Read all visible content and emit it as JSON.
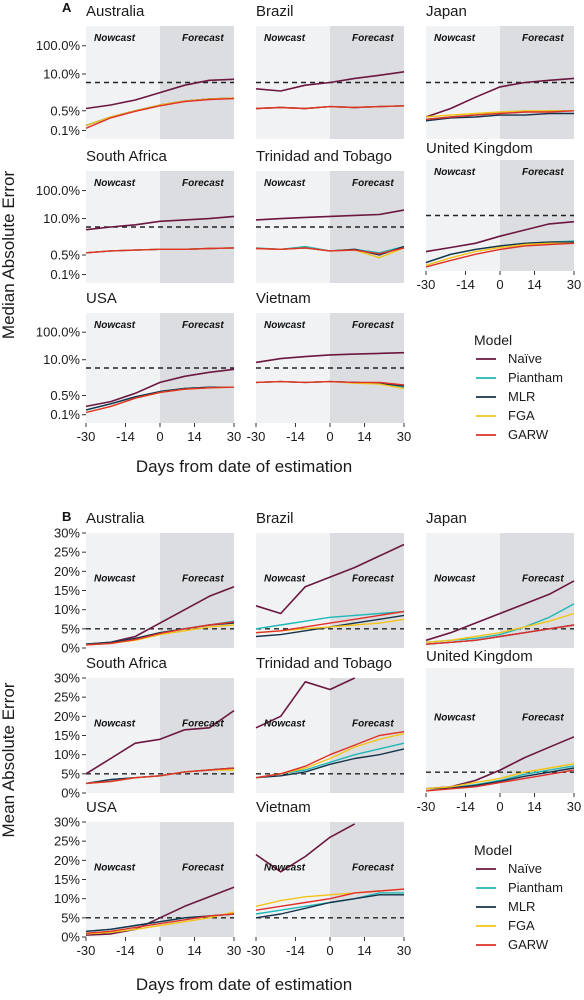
{
  "figure": {
    "x_label": "Days from date of estimation",
    "nowcast_label": "Nowcast",
    "forecast_label": "Forecast",
    "legend_title": "Model",
    "legend_items": [
      {
        "name": "Naïve",
        "color": "#6b1740"
      },
      {
        "name": "Piantham",
        "color": "#1fb8b8"
      },
      {
        "name": "MLR",
        "color": "#17324a"
      },
      {
        "name": "FGA",
        "color": "#f2c418"
      },
      {
        "name": "GARW",
        "color": "#e0302a"
      }
    ],
    "threshold_line": "dashed horizontal reference at 5%",
    "nowcast_shade": "#f1f2f4",
    "forecast_shade": "#dcdde0"
  },
  "chart_data": [
    {
      "section": "A",
      "type": "line",
      "ylabel": "Median Absolute Error",
      "y_scale": "log",
      "y_ticks": [
        "100.0%",
        "10.0%",
        "0.5%",
        "0.1%"
      ],
      "x_ticks": [
        -30,
        -14,
        0,
        14,
        30
      ],
      "xlim": [
        -30,
        30
      ],
      "reference_line": 5,
      "note": "values are approximate median absolute error (%) read at x = -30,-20,-10,0,10,20,30",
      "x": [
        -30,
        -20,
        -10,
        0,
        10,
        20,
        30
      ],
      "panels": [
        {
          "name": "Australia",
          "series": {
            "Naïve": [
              0.6,
              0.8,
              1.2,
              2.2,
              4.0,
              6.0,
              6.5
            ],
            "Piantham": [
              0.15,
              0.3,
              0.5,
              0.8,
              1.1,
              1.3,
              1.4
            ],
            "MLR": [
              0.15,
              0.3,
              0.5,
              0.8,
              1.1,
              1.3,
              1.4
            ],
            "FGA": [
              0.15,
              0.3,
              0.5,
              0.8,
              1.1,
              1.3,
              1.4
            ],
            "GARW": [
              0.12,
              0.28,
              0.48,
              0.75,
              1.05,
              1.25,
              1.35
            ]
          }
        },
        {
          "name": "Brazil",
          "series": {
            "Naïve": [
              3.0,
              2.5,
              4.0,
              5.0,
              7.0,
              9.0,
              12.0
            ],
            "Piantham": [
              0.6,
              0.65,
              0.6,
              0.7,
              0.65,
              0.7,
              0.75
            ],
            "MLR": [
              0.6,
              0.65,
              0.6,
              0.7,
              0.65,
              0.7,
              0.75
            ],
            "FGA": [
              0.6,
              0.65,
              0.6,
              0.7,
              0.65,
              0.7,
              0.75
            ],
            "GARW": [
              0.6,
              0.65,
              0.6,
              0.7,
              0.65,
              0.7,
              0.75
            ]
          }
        },
        {
          "name": "Japan",
          "series": {
            "Naïve": [
              0.3,
              0.6,
              1.5,
              3.5,
              5.0,
              6.0,
              7.0
            ],
            "Piantham": [
              0.25,
              0.3,
              0.35,
              0.4,
              0.45,
              0.5,
              0.5
            ],
            "MLR": [
              0.22,
              0.28,
              0.3,
              0.35,
              0.35,
              0.4,
              0.4
            ],
            "FGA": [
              0.3,
              0.35,
              0.4,
              0.45,
              0.5,
              0.5,
              0.5
            ],
            "GARW": [
              0.25,
              0.3,
              0.35,
              0.4,
              0.45,
              0.45,
              0.5
            ]
          }
        },
        {
          "name": "South Africa",
          "series": {
            "Naïve": [
              4.0,
              5.0,
              6.0,
              8.0,
              9.0,
              10.0,
              12.0
            ],
            "Piantham": [
              0.6,
              0.7,
              0.75,
              0.8,
              0.8,
              0.85,
              0.9
            ],
            "MLR": [
              0.6,
              0.7,
              0.75,
              0.8,
              0.8,
              0.85,
              0.9
            ],
            "FGA": [
              0.6,
              0.7,
              0.75,
              0.8,
              0.8,
              0.85,
              0.9
            ],
            "GARW": [
              0.6,
              0.7,
              0.75,
              0.8,
              0.8,
              0.85,
              0.9
            ]
          }
        },
        {
          "name": "Trinidad and Tobago",
          "series": {
            "Naïve": [
              9.0,
              10.0,
              11.0,
              12.0,
              13.0,
              14.0,
              20.0
            ],
            "Piantham": [
              0.9,
              0.8,
              1.0,
              0.7,
              0.8,
              0.6,
              1.0
            ],
            "MLR": [
              0.85,
              0.8,
              0.9,
              0.7,
              0.8,
              0.5,
              1.0
            ],
            "FGA": [
              0.85,
              0.8,
              0.9,
              0.7,
              0.75,
              0.4,
              0.9
            ],
            "GARW": [
              0.85,
              0.8,
              0.9,
              0.7,
              0.75,
              0.55,
              0.9
            ]
          }
        },
        {
          "name": "United Kingdom",
          "series": {
            "Naïve": [
              0.25,
              0.35,
              0.5,
              0.9,
              1.5,
              2.5,
              3.0
            ],
            "Piantham": [
              0.1,
              0.2,
              0.3,
              0.4,
              0.5,
              0.55,
              0.6
            ],
            "MLR": [
              0.1,
              0.2,
              0.3,
              0.4,
              0.5,
              0.55,
              0.55
            ],
            "FGA": [
              0.08,
              0.15,
              0.25,
              0.35,
              0.45,
              0.5,
              0.5
            ],
            "GARW": [
              0.07,
              0.12,
              0.2,
              0.3,
              0.4,
              0.45,
              0.5
            ]
          }
        },
        {
          "name": "USA",
          "series": {
            "Naïve": [
              0.2,
              0.3,
              0.6,
              1.5,
              2.5,
              3.5,
              4.5
            ],
            "Piantham": [
              0.15,
              0.25,
              0.45,
              0.7,
              0.9,
              1.0,
              1.0
            ],
            "MLR": [
              0.15,
              0.25,
              0.45,
              0.7,
              0.9,
              1.0,
              1.0
            ],
            "FGA": [
              0.12,
              0.2,
              0.4,
              0.65,
              0.85,
              0.95,
              1.0
            ],
            "GARW": [
              0.12,
              0.2,
              0.4,
              0.65,
              0.85,
              0.95,
              1.0
            ]
          }
        },
        {
          "name": "Vietnam",
          "series": {
            "Naïve": [
              8.0,
              11.0,
              13.0,
              15.0,
              16.0,
              17.0,
              18.0
            ],
            "Piantham": [
              1.5,
              1.6,
              1.5,
              1.6,
              1.5,
              1.4,
              1.0
            ],
            "MLR": [
              1.5,
              1.6,
              1.5,
              1.6,
              1.5,
              1.4,
              1.1
            ],
            "FGA": [
              1.5,
              1.6,
              1.5,
              1.6,
              1.4,
              1.3,
              0.9
            ],
            "GARW": [
              1.5,
              1.6,
              1.5,
              1.6,
              1.5,
              1.5,
              1.2
            ]
          }
        }
      ]
    },
    {
      "section": "B",
      "type": "line",
      "ylabel": "Mean Absolute Error",
      "y_scale": "linear",
      "y_ticks": [
        "30%",
        "25%",
        "20%",
        "15%",
        "10%",
        "5%",
        "0%"
      ],
      "ylim": [
        0,
        30
      ],
      "x_ticks": [
        -30,
        -14,
        0,
        14,
        30
      ],
      "xlim": [
        -30,
        30
      ],
      "reference_line": 5,
      "note": "values are approximate mean absolute error (%) read at x = -30,-20,-10,0,10,20,30",
      "x": [
        -30,
        -20,
        -10,
        0,
        10,
        20,
        30
      ],
      "panels": [
        {
          "name": "Australia",
          "series": {
            "Naïve": [
              1.0,
              1.5,
              3.0,
              6.5,
              10.0,
              13.5,
              16.0
            ],
            "Piantham": [
              1.0,
              1.5,
              2.5,
              4.0,
              5.0,
              6.0,
              7.0
            ],
            "MLR": [
              1.0,
              1.5,
              2.5,
              4.0,
              5.0,
              6.0,
              6.5
            ],
            "FGA": [
              0.8,
              1.2,
              2.0,
              3.5,
              4.5,
              5.5,
              6.0
            ],
            "GARW": [
              0.8,
              1.2,
              2.2,
              3.8,
              5.0,
              6.0,
              6.8
            ]
          }
        },
        {
          "name": "Brazil",
          "series": {
            "Naïve": [
              11.0,
              9.0,
              16.0,
              18.5,
              21.0,
              24.0,
              27.0
            ],
            "Piantham": [
              5.0,
              6.0,
              7.0,
              8.0,
              8.5,
              9.0,
              9.5
            ],
            "MLR": [
              3.0,
              3.5,
              4.5,
              5.5,
              6.5,
              7.5,
              8.5
            ],
            "FGA": [
              4.0,
              4.5,
              5.0,
              5.5,
              6.0,
              6.5,
              7.5
            ],
            "GARW": [
              4.0,
              4.5,
              5.5,
              6.5,
              7.5,
              8.5,
              9.5
            ]
          }
        },
        {
          "name": "Japan",
          "series": {
            "Naïve": [
              2.0,
              4.0,
              6.5,
              9.0,
              11.5,
              14.0,
              17.5
            ],
            "Piantham": [
              1.5,
              2.0,
              2.5,
              3.5,
              5.5,
              8.0,
              11.5
            ],
            "MLR": [
              1.0,
              1.5,
              2.0,
              3.0,
              4.0,
              5.0,
              6.0
            ],
            "FGA": [
              1.5,
              2.0,
              3.0,
              4.0,
              5.5,
              7.0,
              9.0
            ],
            "GARW": [
              1.0,
              1.5,
              2.0,
              3.0,
              4.0,
              5.0,
              6.0
            ]
          }
        },
        {
          "name": "South Africa",
          "series": {
            "Naïve": [
              5.0,
              9.0,
              13.0,
              14.0,
              16.5,
              17.0,
              21.5
            ],
            "Piantham": [
              2.5,
              3.5,
              4.0,
              4.5,
              5.5,
              6.0,
              6.5
            ],
            "MLR": [
              2.5,
              3.5,
              4.0,
              4.5,
              5.5,
              6.0,
              6.5
            ],
            "FGA": [
              2.5,
              3.0,
              4.0,
              4.5,
              5.5,
              6.0,
              6.0
            ],
            "GARW": [
              2.5,
              3.0,
              4.0,
              4.5,
              5.5,
              6.0,
              6.5
            ]
          }
        },
        {
          "name": "Trinidad and Tobago",
          "series": {
            "Naïve": [
              17.0,
              20.0,
              29.0,
              27.0,
              30.0
            ],
            "Piantham": [
              4.0,
              5.0,
              6.0,
              8.0,
              10.0,
              11.5,
              13.0
            ],
            "MLR": [
              4.0,
              4.5,
              5.5,
              7.5,
              9.0,
              10.0,
              11.5
            ],
            "FGA": [
              4.0,
              5.0,
              6.5,
              9.0,
              12.0,
              14.0,
              15.5
            ],
            "GARW": [
              4.0,
              5.0,
              7.0,
              10.0,
              12.5,
              15.0,
              16.0
            ]
          }
        },
        {
          "name": "United Kingdom",
          "series": {
            "Naïve": [
              1.0,
              1.5,
              3.0,
              5.5,
              8.5,
              11.0,
              13.5
            ],
            "Piantham": [
              1.0,
              1.2,
              2.0,
              3.0,
              4.5,
              5.5,
              6.5
            ],
            "MLR": [
              1.0,
              1.2,
              1.8,
              2.8,
              4.0,
              5.0,
              6.0
            ],
            "FGA": [
              1.0,
              1.5,
              2.5,
              3.5,
              5.0,
              6.0,
              7.0
            ],
            "GARW": [
              0.5,
              1.0,
              1.5,
              2.5,
              3.5,
              4.5,
              5.5
            ]
          }
        },
        {
          "name": "USA",
          "series": {
            "Naïve": [
              0.5,
              0.8,
              2.0,
              5.0,
              8.0,
              10.5,
              13.0
            ],
            "Piantham": [
              1.5,
              2.0,
              3.0,
              4.0,
              5.0,
              5.5,
              6.0
            ],
            "MLR": [
              1.5,
              2.0,
              3.0,
              4.0,
              5.0,
              5.5,
              6.0
            ],
            "FGA": [
              0.8,
              1.2,
              2.0,
              3.0,
              4.0,
              5.0,
              6.5
            ],
            "GARW": [
              1.0,
              1.5,
              2.5,
              3.5,
              4.5,
              5.5,
              6.0
            ]
          }
        },
        {
          "name": "Vietnam",
          "series": {
            "Naïve": [
              21.5,
              17.0,
              21.0,
              26.0,
              29.5
            ],
            "Piantham": [
              6.0,
              7.0,
              8.0,
              9.0,
              10.0,
              11.5,
              11.5
            ],
            "MLR": [
              5.0,
              6.0,
              7.5,
              9.0,
              10.0,
              11.0,
              11.0
            ],
            "FGA": [
              8.0,
              9.5,
              10.5,
              11.0,
              11.5,
              12.0,
              12.5
            ],
            "GARW": [
              7.0,
              8.0,
              9.0,
              10.0,
              11.5,
              12.0,
              12.5
            ]
          }
        }
      ]
    }
  ]
}
